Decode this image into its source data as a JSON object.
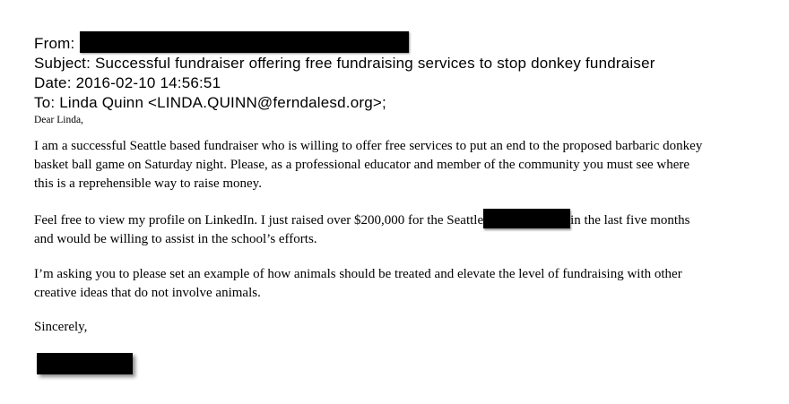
{
  "header": {
    "from_label": "From:",
    "subject_label": "Subject:",
    "subject_value": "Successful fundraiser offering free fundraising services to stop donkey fundraiser",
    "date_label": "Date:",
    "date_value": "2016-02-10 14:56:51",
    "to_label": "To:",
    "to_value": "Linda Quinn <LINDA.QUINN@ferndalesd.org>;"
  },
  "body": {
    "salutation": "Dear Linda,",
    "p1_line1": "I am a successful Seattle based fundraiser who is willing to offer free services to put an end to the proposed barbaric donkey",
    "p1_line2": "basket ball game on Saturday night. Please, as a professional educator and member of the community you must see where",
    "p1_line3": "this is a reprehensible way to raise money.",
    "p2_line1_before_redaction": "Feel free to view my profile on LinkedIn. I just raised over $200,000 for the Seattle",
    "p2_line1_after_redaction": "in the last five months",
    "p2_line2": "and would be willing to assist in the school’s efforts.",
    "p3_line1": "I’m asking you to please set an example of how animals should be treated and elevate the level of fundraising with other",
    "p3_line2": "creative ideas that do not involve animals.",
    "signoff": "Sincerely,"
  },
  "redactions": {
    "count": 3,
    "locations": [
      "from-address",
      "seattle-organization-name",
      "signature-name"
    ]
  },
  "colors": {
    "text": "#000000",
    "background": "#ffffff",
    "redaction": "#000000"
  }
}
